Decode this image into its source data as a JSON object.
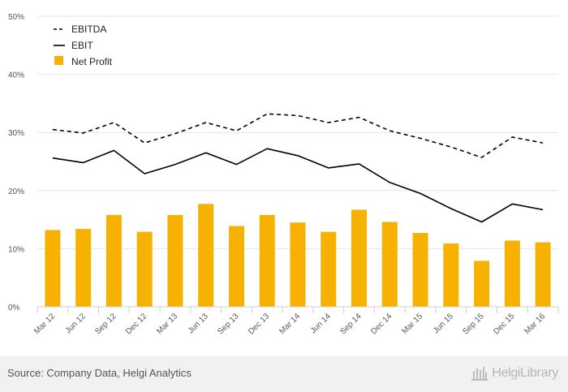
{
  "chart_data": {
    "type": "bar",
    "categories": [
      "Mar 12",
      "Jun 12",
      "Sep 12",
      "Dec 12",
      "Mar 13",
      "Jun 13",
      "Sep 13",
      "Dec 13",
      "Mar 14",
      "Jun 14",
      "Sep 14",
      "Dec 14",
      "Mar 15",
      "Jun 15",
      "Sep 15",
      "Dec 15",
      "Mar 16"
    ],
    "ylim": [
      0,
      50
    ],
    "yticks": [
      0,
      10,
      20,
      30,
      40,
      50
    ],
    "ytick_labels": [
      "0%",
      "10%",
      "20%",
      "30%",
      "40%",
      "50%"
    ],
    "grid": true,
    "legend_position": "top-left",
    "series": [
      {
        "name": "EBITDA",
        "type": "line",
        "style": "dashed",
        "color": "#000000",
        "values": [
          30.5,
          29.9,
          31.7,
          28.2,
          29.8,
          31.7,
          30.3,
          33.2,
          32.9,
          31.7,
          32.6,
          30.3,
          29.0,
          27.5,
          25.7,
          29.2,
          28.2
        ]
      },
      {
        "name": "EBIT",
        "type": "line",
        "style": "solid",
        "color": "#000000",
        "values": [
          25.6,
          24.8,
          26.9,
          22.9,
          24.5,
          26.5,
          24.5,
          27.2,
          26.0,
          23.9,
          24.6,
          21.4,
          19.5,
          16.9,
          14.6,
          17.7,
          16.7
        ]
      },
      {
        "name": "Net Profit",
        "type": "bar",
        "color": "#f7b100",
        "values": [
          13.2,
          13.4,
          15.8,
          12.9,
          15.8,
          17.7,
          13.9,
          15.8,
          14.5,
          12.9,
          16.7,
          14.6,
          12.7,
          10.9,
          7.9,
          11.4,
          11.1
        ]
      }
    ]
  },
  "footer": {
    "source": "Source: Company Data, Helgi Analytics",
    "brand": "HelgiLibrary"
  },
  "colors": {
    "bar": "#f7b100",
    "grid": "#e6e6e6",
    "footer_bg": "#f1f1f1"
  }
}
